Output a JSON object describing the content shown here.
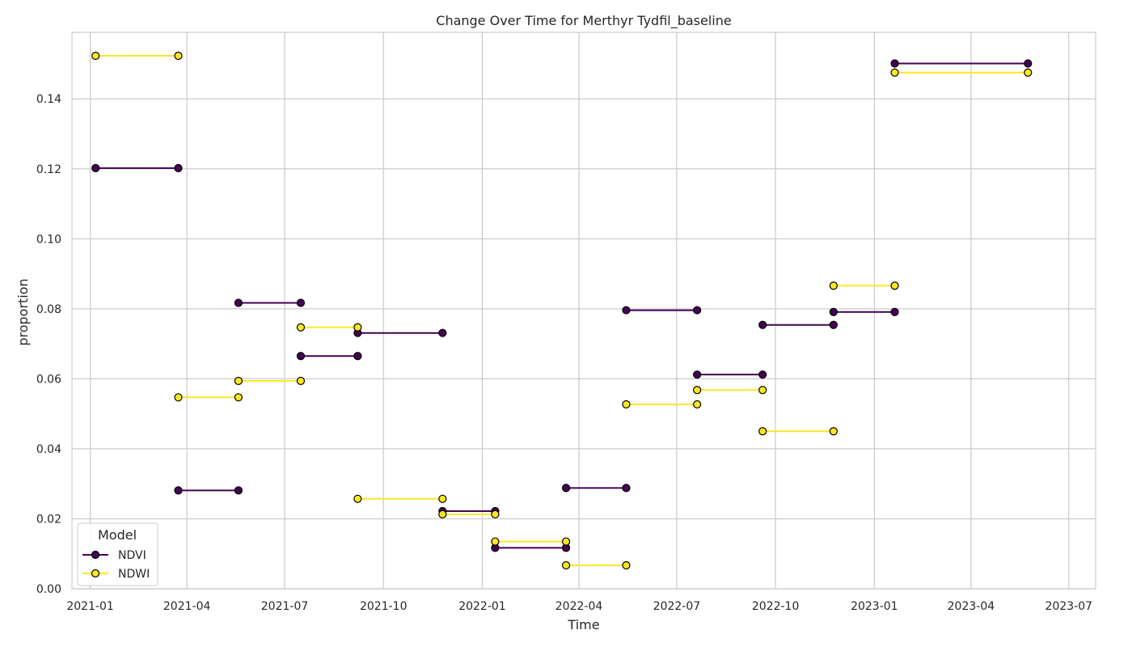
{
  "chart_data": {
    "type": "line",
    "title": "Change Over Time for Merthyr Tydfil_baseline",
    "xlabel": "Time",
    "ylabel": "proportion",
    "x_ticks": [
      "2021-01",
      "2021-04",
      "2021-07",
      "2021-10",
      "2022-01",
      "2022-04",
      "2022-07",
      "2022-10",
      "2023-01",
      "2023-04",
      "2023-07"
    ],
    "y_ticks": [
      "0.00",
      "0.02",
      "0.04",
      "0.06",
      "0.08",
      "0.10",
      "0.12",
      "0.14"
    ],
    "xlim": [
      "2020-12-15",
      "2023-07-26"
    ],
    "ylim": [
      0,
      0.159
    ],
    "grid": true,
    "legend": {
      "title": "Model",
      "placement": "lower-left"
    },
    "series": [
      {
        "name": "NDVI",
        "color": "#440154",
        "segments": [
          [
            [
              "2021-01-06",
              0.1202
            ],
            [
              "2021-03-24",
              0.1202
            ]
          ],
          [
            [
              "2021-03-24",
              0.0281
            ],
            [
              "2021-05-19",
              0.0281
            ]
          ],
          [
            [
              "2021-05-19",
              0.0817
            ],
            [
              "2021-07-16",
              0.0817
            ]
          ],
          [
            [
              "2021-07-16",
              0.0665
            ],
            [
              "2021-09-07",
              0.0665
            ]
          ],
          [
            [
              "2021-09-07",
              0.0731
            ],
            [
              "2021-11-25",
              0.0731
            ]
          ],
          [
            [
              "2021-11-25",
              0.0222
            ],
            [
              "2022-01-13",
              0.0222
            ]
          ],
          [
            [
              "2022-01-13",
              0.0117
            ],
            [
              "2022-03-20",
              0.0117
            ]
          ],
          [
            [
              "2022-03-20",
              0.0288
            ],
            [
              "2022-05-15",
              0.0288
            ]
          ],
          [
            [
              "2022-05-15",
              0.0796
            ],
            [
              "2022-07-20",
              0.0796
            ]
          ],
          [
            [
              "2022-07-20",
              0.0612
            ],
            [
              "2022-09-19",
              0.0612
            ]
          ],
          [
            [
              "2022-09-19",
              0.0754
            ],
            [
              "2022-11-24",
              0.0754
            ]
          ],
          [
            [
              "2022-11-24",
              0.0791
            ],
            [
              "2023-01-20",
              0.0791
            ]
          ],
          [
            [
              "2023-01-20",
              0.1501
            ],
            [
              "2023-05-24",
              0.1501
            ]
          ]
        ]
      },
      {
        "name": "NDWI",
        "color": "#fde725",
        "segments": [
          [
            [
              "2021-01-06",
              0.1523
            ],
            [
              "2021-03-24",
              0.1523
            ]
          ],
          [
            [
              "2021-03-24",
              0.0547
            ],
            [
              "2021-05-19",
              0.0547
            ]
          ],
          [
            [
              "2021-05-19",
              0.0594
            ],
            [
              "2021-07-16",
              0.0594
            ]
          ],
          [
            [
              "2021-07-16",
              0.0747
            ],
            [
              "2021-09-07",
              0.0747
            ]
          ],
          [
            [
              "2021-09-07",
              0.0257
            ],
            [
              "2021-11-25",
              0.0257
            ]
          ],
          [
            [
              "2021-11-25",
              0.0213
            ],
            [
              "2022-01-13",
              0.0213
            ]
          ],
          [
            [
              "2022-01-13",
              0.0135
            ],
            [
              "2022-03-20",
              0.0135
            ]
          ],
          [
            [
              "2022-03-20",
              0.0067
            ],
            [
              "2022-05-15",
              0.0067
            ]
          ],
          [
            [
              "2022-05-15",
              0.0527
            ],
            [
              "2022-07-20",
              0.0527
            ]
          ],
          [
            [
              "2022-07-20",
              0.0568
            ],
            [
              "2022-09-19",
              0.0568
            ]
          ],
          [
            [
              "2022-09-19",
              0.045
            ],
            [
              "2022-11-24",
              0.045
            ]
          ],
          [
            [
              "2022-11-24",
              0.0866
            ],
            [
              "2023-01-20",
              0.0866
            ]
          ],
          [
            [
              "2023-01-20",
              0.1475
            ],
            [
              "2023-05-24",
              0.1475
            ]
          ]
        ]
      }
    ]
  }
}
